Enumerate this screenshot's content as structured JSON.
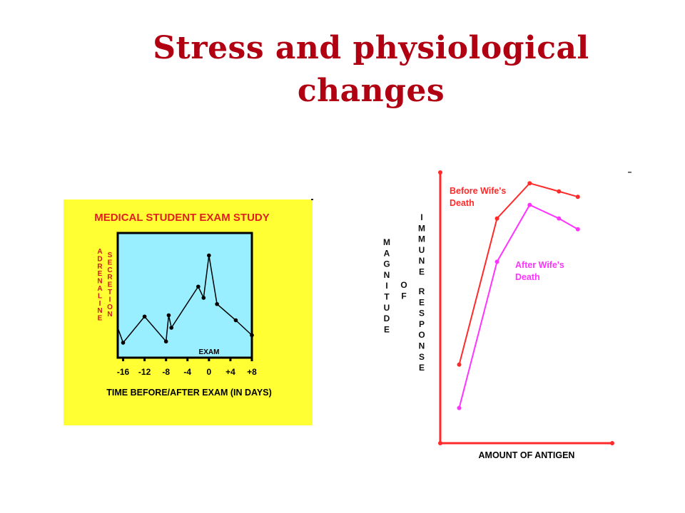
{
  "slide": {
    "title_line1": "Stress and physiological",
    "title_line2": "changes"
  },
  "chart_data": [
    {
      "type": "line",
      "title": "MEDICAL STUDENT EXAM STUDY",
      "xlabel": "TIME BEFORE/AFTER EXAM (IN DAYS)",
      "ylabel_left": "ADRENALINE",
      "ylabel_right": "SECRETION",
      "x_tick_labels": [
        "-16",
        "-12",
        "-8",
        "-4",
        "0",
        "+4",
        "+8"
      ],
      "x_ticks": [
        -16,
        -12,
        -8,
        -4,
        0,
        4,
        8
      ],
      "xlim": [
        -17,
        8
      ],
      "ylim": [
        0,
        10
      ],
      "annotation": "EXAM",
      "series": [
        {
          "x": [
            -17,
            -16,
            -12,
            -8,
            -7.5,
            -7,
            -2,
            -1,
            0,
            1.5,
            5,
            8
          ],
          "y": [
            2.4,
            1.2,
            3.3,
            1.3,
            3.4,
            2.4,
            5.7,
            4.8,
            8.2,
            4.3,
            3.0,
            1.8
          ]
        }
      ],
      "background": "#ffff33",
      "plot_background": "#99eeff"
    },
    {
      "type": "line",
      "xlabel": "AMOUNT OF ANTIGEN",
      "ylabel_left": "MAGNITUDE",
      "ylabel_mid": "OF",
      "ylabel_right": "IMMUNE RESPONSE",
      "ylim": [
        0,
        10
      ],
      "xlim": [
        0,
        10
      ],
      "series": [
        {
          "name": "Before Wife's Death",
          "name_line1": "Before Wife's",
          "name_line2": "Death",
          "color": "#ff2a2a",
          "x": [
            1.1,
            3.3,
            5.2,
            6.9,
            8.0
          ],
          "y": [
            2.9,
            8.3,
            9.6,
            9.3,
            9.1
          ]
        },
        {
          "name": "After Wife's Death",
          "name_line1": "After Wife's",
          "name_line2": "Death",
          "color": "#ff33ff",
          "x": [
            1.1,
            3.3,
            5.2,
            6.9,
            8.0
          ],
          "y": [
            1.3,
            6.7,
            8.8,
            8.3,
            7.9
          ]
        }
      ],
      "axis_color": "#ff2a2a"
    }
  ]
}
